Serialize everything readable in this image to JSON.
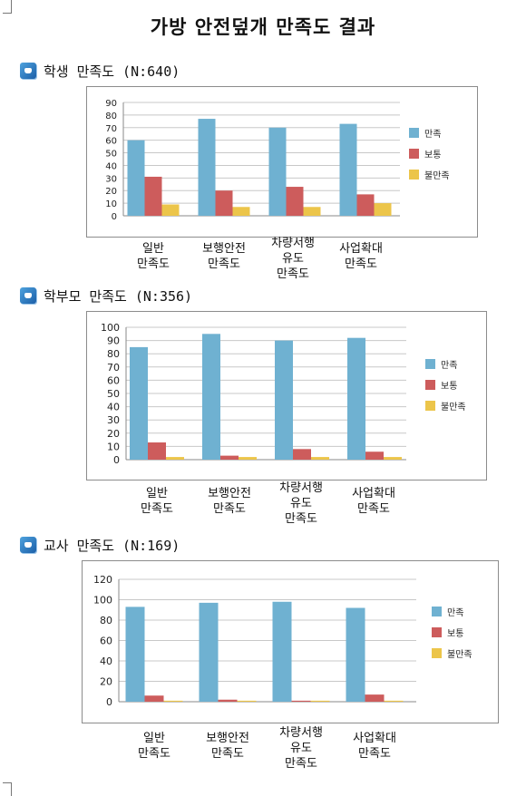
{
  "title": "가방 안전덮개 만족도 결과",
  "colors": {
    "satisfied": "#6fb1d1",
    "neutral": "#cd5c5c",
    "dissatisfied": "#ecc54a",
    "grid": "#c8c8c8"
  },
  "charts": [
    {
      "icon": "document-icon",
      "heading": "학생 만족도 (N:640)"
    },
    {
      "icon": "document-icon",
      "heading": "학부모 만족도 (N:356)"
    },
    {
      "icon": "document-icon",
      "heading": "교사 만족도 (N:169)"
    }
  ],
  "chart_data": [
    {
      "type": "bar",
      "title": "학생 만족도 (N:640)",
      "categories": [
        "일반\n만족도",
        "보행안전\n만족도",
        "차량서행\n유도\n만족도",
        "사업확대\n만족도"
      ],
      "series": [
        {
          "name": "만족",
          "values": [
            60,
            77,
            70,
            73
          ]
        },
        {
          "name": "보통",
          "values": [
            31,
            20,
            23,
            17
          ]
        },
        {
          "name": "불만족",
          "values": [
            9,
            7,
            7,
            10
          ]
        }
      ],
      "yticks": [
        "0",
        "10",
        "20",
        "30",
        "40",
        "50",
        "60",
        "70",
        "80",
        "90"
      ],
      "ylim": [
        0,
        90
      ],
      "grid": true,
      "legend": "right"
    },
    {
      "type": "bar",
      "title": "학부모 만족도 (N:356)",
      "categories": [
        "일반\n만족도",
        "보행안전\n만족도",
        "차량서행\n유도\n만족도",
        "사업확대\n만족도"
      ],
      "series": [
        {
          "name": "만족",
          "values": [
            85,
            95,
            90,
            92
          ]
        },
        {
          "name": "보통",
          "values": [
            13,
            3,
            8,
            6
          ]
        },
        {
          "name": "불만족",
          "values": [
            2,
            2,
            2,
            2
          ]
        }
      ],
      "yticks": [
        "0",
        "10",
        "20",
        "30",
        "40",
        "50",
        "60",
        "70",
        "80",
        "90",
        "100"
      ],
      "ylim": [
        0,
        100
      ],
      "grid": true,
      "legend": "right"
    },
    {
      "type": "bar",
      "title": "교사 만족도 (N:169)",
      "categories": [
        "일반\n만족도",
        "보행안전\n만족도",
        "차량서행\n유도\n만족도",
        "사업확대\n만족도"
      ],
      "series": [
        {
          "name": "만족",
          "values": [
            93,
            97,
            98,
            92
          ]
        },
        {
          "name": "보통",
          "values": [
            6,
            2,
            1,
            7
          ]
        },
        {
          "name": "불만족",
          "values": [
            1,
            1,
            1,
            1
          ]
        }
      ],
      "yticks": [
        "0",
        "20",
        "40",
        "60",
        "80",
        "100",
        "120"
      ],
      "ylim": [
        0,
        120
      ],
      "grid": true,
      "legend": "right"
    }
  ]
}
